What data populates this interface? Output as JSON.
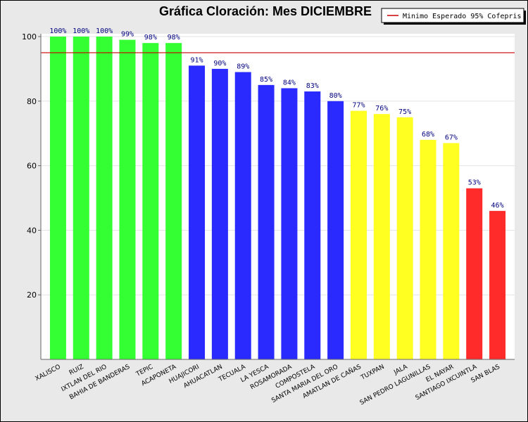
{
  "chart_data": {
    "type": "bar",
    "title": "Gráfica Cloración: Mes DICIEMBRE",
    "xlabel": "",
    "ylabel": "",
    "ylim": [
      0,
      100
    ],
    "yticks": [
      20,
      40,
      60,
      80,
      100
    ],
    "grid": true,
    "legend_placement": "top-right",
    "categories": [
      "XALISCO",
      "RUIZ",
      "IXTLAN DEL RIO",
      "BAHIA DE BANDERAS",
      "TEPIC",
      "ACAPONETA",
      "HUAJICORI",
      "AHUACATLAN",
      "TECUALA",
      "LA YESCA",
      "ROSAMORADA",
      "COMPOSTELA",
      "SANTA MARIA DEL ORO",
      "AMATLAN DE CAÑAS",
      "TUXPAN",
      "JALA",
      "SAN PEDRO LAGUNILLAS",
      "EL NAYAR",
      "SANTIAGO IXCUINTLA",
      "SAN BLAS"
    ],
    "values": [
      100,
      100,
      100,
      99,
      98,
      98,
      91,
      90,
      89,
      85,
      84,
      83,
      80,
      77,
      76,
      75,
      68,
      67,
      53,
      46
    ],
    "labels": [
      "100%",
      "100%",
      "100%",
      "99%",
      "98%",
      "98%",
      "91%",
      "90%",
      "89%",
      "85%",
      "84%",
      "83%",
      "80%",
      "77%",
      "76%",
      "75%",
      "68%",
      "67%",
      "53%",
      "46%"
    ],
    "bar_colors": [
      "#33ff33",
      "#33ff33",
      "#33ff33",
      "#33ff33",
      "#33ff33",
      "#33ff33",
      "#2a2aff",
      "#2a2aff",
      "#2a2aff",
      "#2a2aff",
      "#2a2aff",
      "#2a2aff",
      "#2a2aff",
      "#ffff22",
      "#ffff22",
      "#ffff22",
      "#ffff22",
      "#ffff22",
      "#ff2a2a",
      "#ff2a2a"
    ],
    "reference_line": {
      "name": "Minimo Esperado 95% Cofepris",
      "value": 95,
      "color": "#cc0000"
    },
    "label_color": "#000080",
    "plot_background": "#ffffff",
    "frame_background": "#e9e9e9"
  }
}
